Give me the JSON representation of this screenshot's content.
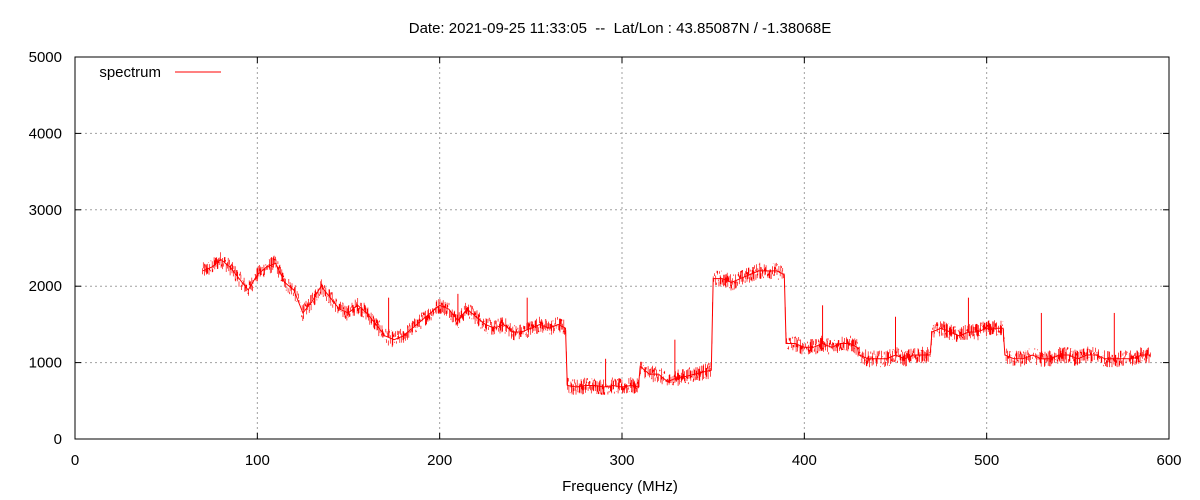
{
  "chart_data": {
    "type": "line",
    "title": "Date: 2021-09-25 11:33:05  --  Lat/Lon : 43.85087N / -1.38068E",
    "xlabel": "Frequency (MHz)",
    "ylabel": "",
    "xlim": [
      0,
      600
    ],
    "ylim": [
      0,
      5000
    ],
    "x_ticks": [
      0,
      100,
      200,
      300,
      400,
      500,
      600
    ],
    "y_ticks": [
      0,
      1000,
      2000,
      3000,
      4000,
      5000
    ],
    "grid": true,
    "legend_position": "top-left",
    "series": [
      {
        "name": "spectrum",
        "color": "#ff0000",
        "x": [
          70,
          75,
          80,
          85,
          90,
          95,
          100,
          105,
          110,
          115,
          120,
          125,
          130,
          135,
          140,
          145,
          150,
          155,
          160,
          165,
          170,
          175,
          180,
          185,
          190,
          195,
          200,
          205,
          210,
          215,
          220,
          225,
          230,
          235,
          240,
          245,
          250,
          255,
          260,
          265,
          269,
          270,
          275,
          280,
          285,
          290,
          295,
          300,
          305,
          309,
          310,
          315,
          320,
          325,
          330,
          335,
          340,
          345,
          349,
          350,
          355,
          360,
          365,
          370,
          375,
          380,
          385,
          389,
          390,
          395,
          400,
          405,
          410,
          415,
          420,
          425,
          429,
          430,
          435,
          440,
          445,
          450,
          455,
          460,
          465,
          469,
          470,
          475,
          480,
          485,
          490,
          495,
          500,
          505,
          509,
          510,
          515,
          520,
          525,
          530,
          535,
          540,
          545,
          550,
          555,
          560,
          565,
          570,
          575,
          580,
          585,
          590
        ],
        "y": [
          2200,
          2250,
          2350,
          2250,
          2100,
          1950,
          2150,
          2250,
          2300,
          2050,
          1950,
          1650,
          1800,
          2000,
          1850,
          1700,
          1650,
          1750,
          1650,
          1500,
          1350,
          1300,
          1350,
          1450,
          1550,
          1650,
          1750,
          1700,
          1550,
          1700,
          1600,
          1500,
          1450,
          1500,
          1400,
          1400,
          1450,
          1500,
          1450,
          1500,
          1450,
          700,
          680,
          700,
          700,
          680,
          700,
          680,
          700,
          680,
          950,
          850,
          850,
          750,
          800,
          820,
          850,
          880,
          900,
          2100,
          2100,
          2050,
          2100,
          2150,
          2200,
          2200,
          2200,
          2150,
          1250,
          1250,
          1200,
          1200,
          1250,
          1200,
          1250,
          1250,
          1200,
          1100,
          1050,
          1050,
          1050,
          1100,
          1050,
          1100,
          1100,
          1100,
          1400,
          1450,
          1400,
          1350,
          1400,
          1400,
          1450,
          1450,
          1450,
          1100,
          1050,
          1050,
          1100,
          1050,
          1050,
          1100,
          1100,
          1050,
          1100,
          1100,
          1050,
          1050,
          1050,
          1050,
          1100,
          1100
        ],
        "spikes": [
          {
            "x": 172,
            "y": 1850
          },
          {
            "x": 210,
            "y": 1900
          },
          {
            "x": 248,
            "y": 1850
          },
          {
            "x": 291,
            "y": 1050
          },
          {
            "x": 329,
            "y": 1300
          },
          {
            "x": 410,
            "y": 1750
          },
          {
            "x": 450,
            "y": 1600
          },
          {
            "x": 490,
            "y": 1850
          },
          {
            "x": 530,
            "y": 1650
          },
          {
            "x": 570,
            "y": 1650
          }
        ]
      }
    ]
  }
}
